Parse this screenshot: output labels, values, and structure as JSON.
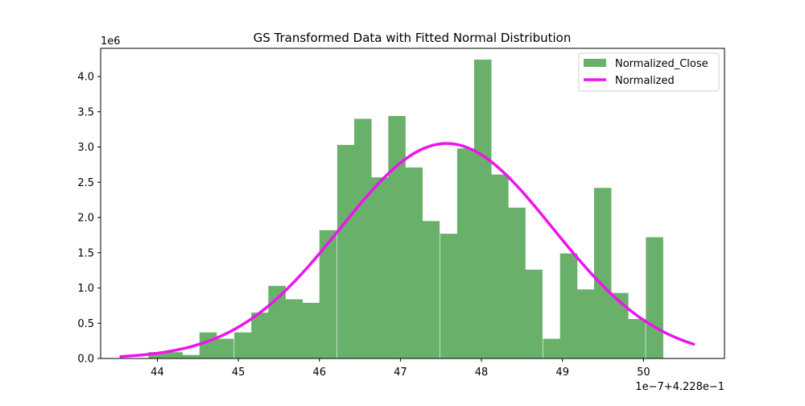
{
  "chart_data": {
    "type": "histogram",
    "title": "GS Transformed Data with Fitted Normal Distribution",
    "xlabel": "",
    "ylabel": "",
    "x_offset_label": "1e−7+4.228e−1",
    "y_scale_label": "1e6",
    "xlim": [
      43.3,
      51.0
    ],
    "ylim": [
      0.0,
      4.4
    ],
    "xticks": [
      44,
      45,
      46,
      47,
      48,
      49,
      50
    ],
    "xtick_labels": [
      "44",
      "45",
      "46",
      "47",
      "48",
      "49",
      "50"
    ],
    "yticks": [
      0.0,
      0.5,
      1.0,
      1.5,
      2.0,
      2.5,
      3.0,
      3.5,
      4.0
    ],
    "ytick_labels": [
      "0.0",
      "0.5",
      "1.0",
      "1.5",
      "2.0",
      "2.5",
      "3.0",
      "3.5",
      "4.0"
    ],
    "bin_width": 0.21,
    "bins": [
      {
        "x": 43.89,
        "y": 0.09
      },
      {
        "x": 44.1,
        "y": 0.09
      },
      {
        "x": 44.31,
        "y": 0.05
      },
      {
        "x": 44.52,
        "y": 0.37
      },
      {
        "x": 44.73,
        "y": 0.28
      },
      {
        "x": 44.95,
        "y": 0.37
      },
      {
        "x": 45.16,
        "y": 0.65
      },
      {
        "x": 45.37,
        "y": 1.03
      },
      {
        "x": 45.58,
        "y": 0.84
      },
      {
        "x": 45.79,
        "y": 0.79
      },
      {
        "x": 46.0,
        "y": 1.82
      },
      {
        "x": 46.22,
        "y": 3.03
      },
      {
        "x": 46.43,
        "y": 3.4
      },
      {
        "x": 46.64,
        "y": 2.57
      },
      {
        "x": 46.85,
        "y": 3.44
      },
      {
        "x": 47.06,
        "y": 2.71
      },
      {
        "x": 47.27,
        "y": 1.95
      },
      {
        "x": 47.49,
        "y": 1.77
      },
      {
        "x": 47.7,
        "y": 2.98
      },
      {
        "x": 47.91,
        "y": 4.24
      },
      {
        "x": 48.12,
        "y": 2.61
      },
      {
        "x": 48.33,
        "y": 2.14
      },
      {
        "x": 48.54,
        "y": 1.26
      },
      {
        "x": 48.76,
        "y": 0.28
      },
      {
        "x": 48.97,
        "y": 1.49
      },
      {
        "x": 49.18,
        "y": 0.98
      },
      {
        "x": 49.39,
        "y": 2.42
      },
      {
        "x": 49.6,
        "y": 0.93
      },
      {
        "x": 49.81,
        "y": 0.56
      },
      {
        "x": 50.03,
        "y": 1.72
      }
    ],
    "normal_fit": {
      "mean": 47.57,
      "std": 1.31,
      "peak": 3.05,
      "x_range": [
        43.55,
        50.62
      ]
    },
    "series": [
      {
        "name": "Normalized_Close",
        "kind": "bars",
        "color": "#69b16a"
      },
      {
        "name": "Normalized",
        "kind": "line",
        "color": "#ee13ee"
      }
    ],
    "legend_position": "top-right",
    "grid": false
  }
}
